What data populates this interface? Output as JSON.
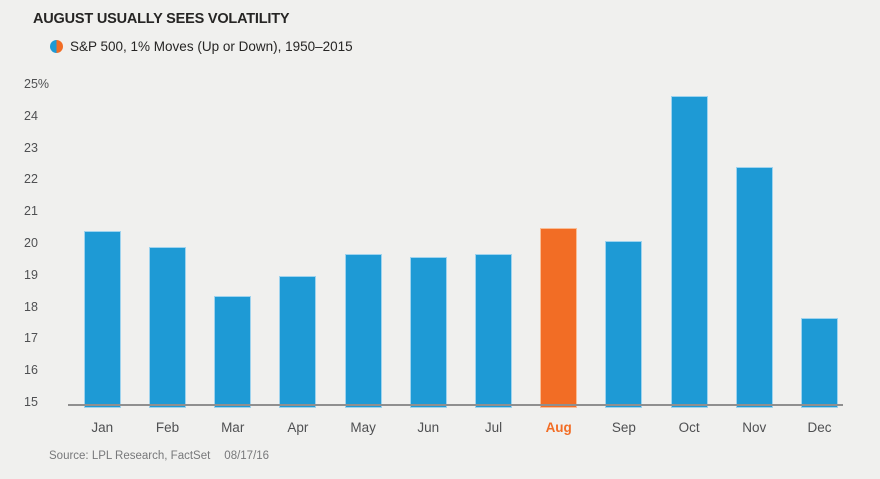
{
  "title": "AUGUST USUALLY SEES VOLATILITY",
  "legend": {
    "label": "S&P 500, 1% Moves (Up or Down), 1950–2015"
  },
  "source": {
    "label": "Source: LPL Research, FactSet",
    "date": "08/17/16"
  },
  "colors": {
    "background": "#f0f0ee",
    "bar_blue": "#1e9ad5",
    "bar_blue_edge": "#9ed3ee",
    "bar_orange": "#f26d25",
    "bar_orange_edge": "#f9bd95",
    "axis_line": "#8f8f8f",
    "title_text": "#262524",
    "label_text": "#4f5052",
    "source_text": "#77787a"
  },
  "chart_data": {
    "type": "bar",
    "title": "AUGUST USUALLY SEES VOLATILITY",
    "legend_entries": [
      "S&P 500, 1% Moves (Up or Down), 1950–2015"
    ],
    "legend_position": "top-left",
    "categories": [
      "Jan",
      "Feb",
      "Mar",
      "Apr",
      "May",
      "Jun",
      "Jul",
      "Aug",
      "Sep",
      "Oct",
      "Nov",
      "Dec"
    ],
    "values": [
      20.4,
      19.9,
      18.4,
      19.0,
      19.7,
      19.6,
      19.7,
      20.5,
      20.1,
      24.6,
      22.4,
      17.7
    ],
    "unit": "%",
    "highlight_category": "Aug",
    "highlight_color": "#f26d25",
    "bar_color": "#1e9ad5",
    "ylim": [
      15,
      25
    ],
    "ytick_labels": [
      "25%",
      "24",
      "23",
      "22",
      "21",
      "20",
      "19",
      "18",
      "17",
      "16",
      "15"
    ],
    "ytick_values": [
      25,
      24,
      23,
      22,
      21,
      20,
      19,
      18,
      17,
      16,
      15
    ],
    "grid": false,
    "xlabel": "",
    "ylabel": ""
  }
}
